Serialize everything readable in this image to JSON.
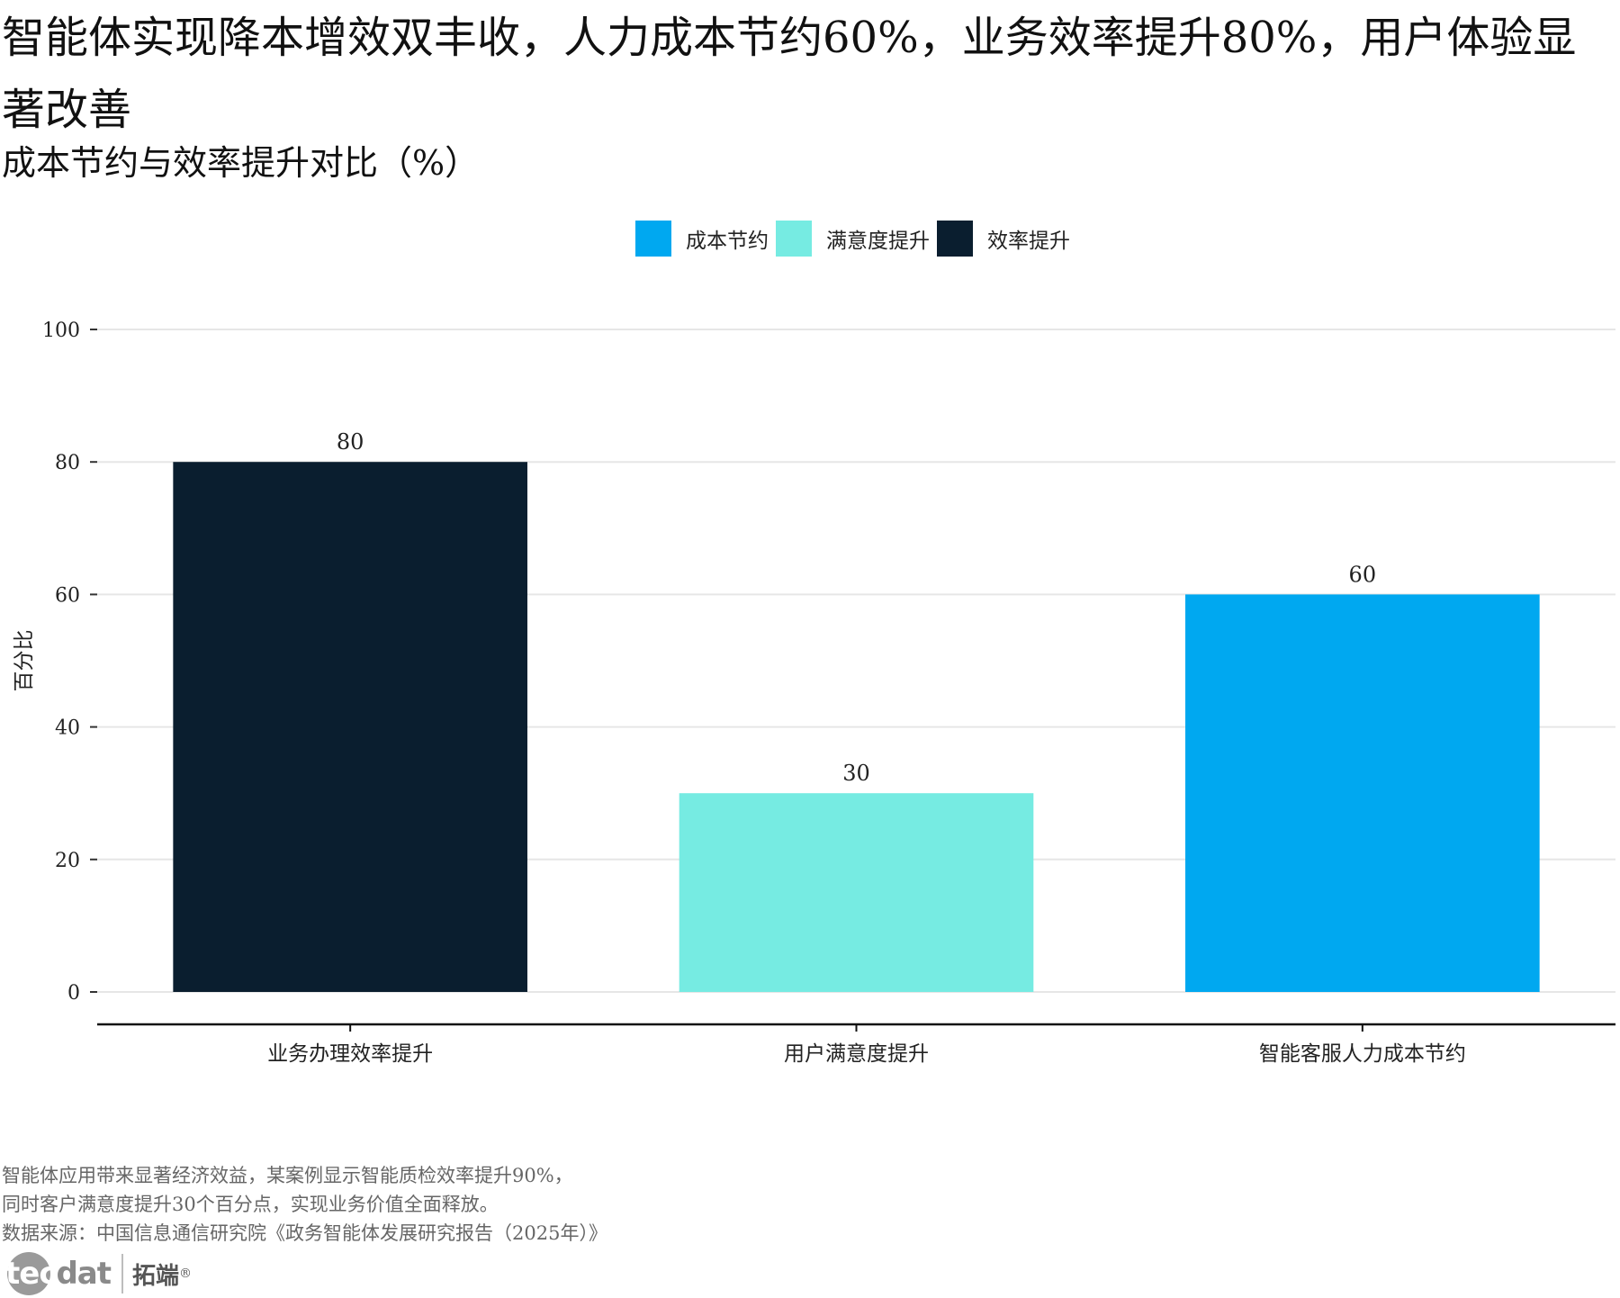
{
  "title": "智能体实现降本增效双丰收，人力成本节约60%，业务效率提升80%，用户体验显著改善",
  "subtitle": "成本节约与效率提升对比（%）",
  "legend": [
    {
      "label": "成本节约",
      "color": "#00A8F0"
    },
    {
      "label": "满意度提升",
      "color": "#76EBE2"
    },
    {
      "label": "效率提升",
      "color": "#0A1E2F"
    }
  ],
  "chart_data": {
    "type": "bar",
    "categories": [
      "业务办理效率提升",
      "用户满意度提升",
      "智能客服人力成本节约"
    ],
    "values": [
      80,
      30,
      60
    ],
    "value_labels": [
      "80",
      "30",
      "60"
    ],
    "bar_colors": [
      "#0A1E2F",
      "#76EBE2",
      "#00A8F0"
    ],
    "bar_groups": [
      "效率提升",
      "满意度提升",
      "成本节约"
    ],
    "ylabel": "百分比",
    "xlabel": "",
    "ylim": [
      0,
      100
    ],
    "yticks": [
      0,
      20,
      40,
      60,
      80,
      100
    ],
    "ytick_labels": [
      "0",
      "20",
      "40",
      "60",
      "80",
      "100"
    ],
    "grid": true,
    "legend_position": "top"
  },
  "notes": [
    "智能体应用带来显著经济效益，某案例显示智能质检效率提升90%，",
    "同时客户满意度提升30个百分点，实现业务价值全面释放。",
    "数据来源：中国信息通信研究院《政务智能体发展研究报告（2025年）》"
  ],
  "logo": {
    "tec": "tec",
    "dat": "dat",
    "cn": "拓端",
    "reg": "®"
  }
}
